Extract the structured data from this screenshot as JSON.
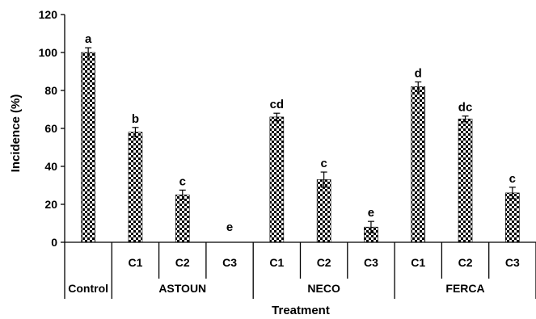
{
  "chart_data": {
    "type": "bar",
    "xlabel": "Treatment",
    "ylabel": "Incidence (%)",
    "ylim": [
      0,
      120
    ],
    "yticks": [
      "0",
      "20",
      "40",
      "60",
      "80",
      "100",
      "120"
    ],
    "grid": false,
    "bar_fill": "checkerboard black/white",
    "categories": [
      {
        "sub": "",
        "group": "Control",
        "value": 100,
        "error": 2.5,
        "letter": "a"
      },
      {
        "sub": "C1",
        "group": "ASTOUN",
        "value": 58,
        "error": 2.5,
        "letter": "b"
      },
      {
        "sub": "C2",
        "group": "ASTOUN",
        "value": 25,
        "error": 2.5,
        "letter": "c"
      },
      {
        "sub": "C3",
        "group": "ASTOUN",
        "value": 0,
        "error": 0,
        "letter": "e"
      },
      {
        "sub": "C1",
        "group": "NECO",
        "value": 66,
        "error": 2,
        "letter": "cd"
      },
      {
        "sub": "C2",
        "group": "NECO",
        "value": 33,
        "error": 4,
        "letter": "c"
      },
      {
        "sub": "C3",
        "group": "NECO",
        "value": 8,
        "error": 3,
        "letter": "e"
      },
      {
        "sub": "C1",
        "group": "FERCA",
        "value": 82,
        "error": 2.5,
        "letter": "d"
      },
      {
        "sub": "C2",
        "group": "FERCA",
        "value": 65,
        "error": 1.5,
        "letter": "dc"
      },
      {
        "sub": "C3",
        "group": "FERCA",
        "value": 26,
        "error": 3,
        "letter": "c"
      }
    ],
    "groups": [
      "Control",
      "ASTOUN",
      "NECO",
      "FERCA"
    ],
    "colors": {
      "bar": "#000000",
      "background": "#ffffff",
      "axis": "#000000"
    }
  }
}
